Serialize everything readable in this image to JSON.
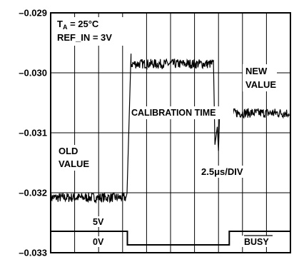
{
  "chart_data": {
    "type": "line",
    "title": "",
    "xlabel": "",
    "ylabel": "",
    "ylim": [
      -0.033,
      -0.029
    ],
    "yticks": [
      "–0.029",
      "–0.030",
      "–0.031",
      "–0.032",
      "–0.033"
    ],
    "ytick_values": [
      -0.029,
      -0.03,
      -0.031,
      -0.032,
      -0.033
    ],
    "x_divisions": 10,
    "grid": true,
    "time_scale": "2.5μs/DIV",
    "conditions": {
      "ta_label": "T",
      "ta_sub": "A",
      "ta_value": " = 25°C",
      "ref_in": "REF_IN = 3V"
    },
    "annotations": {
      "old_value_line1": "OLD",
      "old_value_line2": "VALUE",
      "new_value_line1": "NEW",
      "new_value_line2": "VALUE",
      "calibration_time": "CALIBRATION TIME",
      "time_per_div": "2.5μs/DIV",
      "busy": "BUSY",
      "v_high": "5V",
      "v_low": "0V"
    },
    "series": [
      {
        "segments": [
          {
            "x_start_div": 0.0,
            "x_end_div": 3.2,
            "mean": -0.03208,
            "noise": 8e-05
          },
          {
            "x_start_div": 3.2,
            "x_end_div": 3.35,
            "ramp_to": -0.02968
          },
          {
            "x_start_div": 3.35,
            "x_end_div": 9.95,
            "note": "high level"
          }
        ],
        "high_level_mean": -0.02985,
        "high_level_noise": 8e-05,
        "high_level_end_div": 6.8,
        "new_value_start_div": 6.95,
        "new_value_mean": -0.03067,
        "new_value_noise": 8e-05
      }
    ],
    "busy_signal": {
      "high_to_low_div": 3.2,
      "low_to_high_div": 7.45
    }
  }
}
